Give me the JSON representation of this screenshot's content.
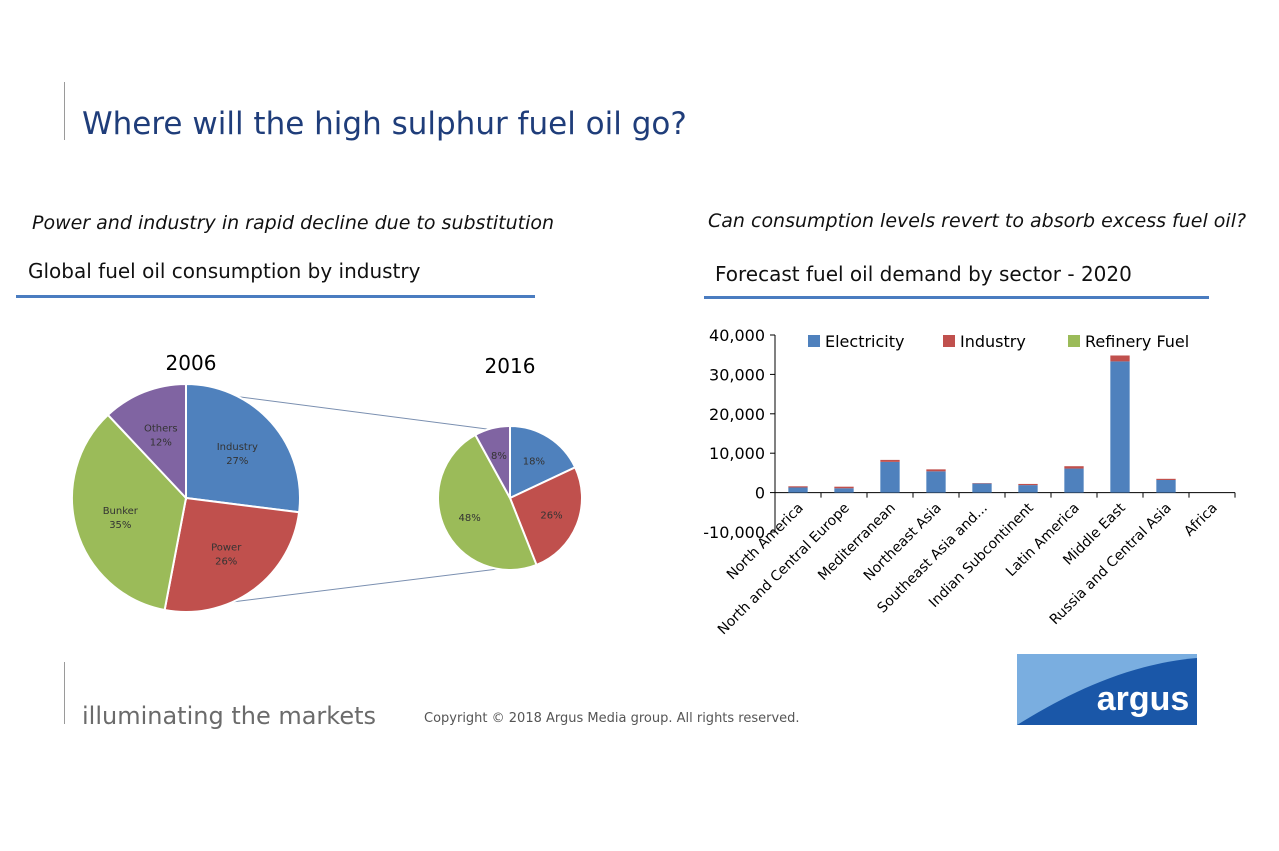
{
  "page": {
    "title": "Where will the high sulphur fuel oil go?",
    "left_subtitle": "Power and industry in rapid decline due to substitution",
    "right_subtitle": "Can consumption levels revert to absorb excess fuel oil?",
    "tagline": "illuminating the markets",
    "copyright": "Copyright © 2018 Argus Media group. All rights reserved.",
    "logo_text": "argus",
    "colors": {
      "title": "#1f3d7a",
      "rule": "#4a7cc0",
      "logo_dark": "#1a57a8",
      "logo_light": "#7aaee0"
    }
  },
  "chart_data": [
    {
      "type": "pie",
      "title": "Global fuel oil consumption by industry",
      "pie_title": "2006",
      "slices": [
        {
          "label": "Industry",
          "value": 27,
          "display": "27%",
          "color": "#4f81bd"
        },
        {
          "label": "Power",
          "value": 26,
          "display": "26%",
          "color": "#c0504d"
        },
        {
          "label": "Bunker",
          "value": 35,
          "display": "35%",
          "color": "#9bbb59"
        },
        {
          "label": "Others",
          "value": 12,
          "display": "12%",
          "color": "#8064a2"
        }
      ]
    },
    {
      "type": "pie",
      "pie_title": "2016",
      "slices": [
        {
          "label": "",
          "value": 18,
          "display": "18%",
          "color": "#4f81bd"
        },
        {
          "label": "",
          "value": 26,
          "display": "26%",
          "color": "#c0504d"
        },
        {
          "label": "",
          "value": 48,
          "display": "48%",
          "color": "#9bbb59"
        },
        {
          "label": "",
          "value": 8,
          "display": "8%",
          "color": "#8064a2"
        }
      ]
    },
    {
      "type": "bar",
      "stacked": true,
      "title": "Forecast fuel oil demand by sector - 2020",
      "categories": [
        "North America",
        "North and Central Europe",
        "Mediterranean",
        "Northeast Asia",
        "Southeast Asia and...",
        "Indian Subcontinent",
        "Latin America",
        "Middle East",
        "Russia and Central Asia",
        "Africa"
      ],
      "series": [
        {
          "name": "Electricity",
          "color": "#4f81bd",
          "values": [
            1300,
            1100,
            7800,
            5400,
            2300,
            1900,
            6100,
            33300,
            3200,
            0
          ]
        },
        {
          "name": "Industry",
          "color": "#c0504d",
          "values": [
            300,
            400,
            500,
            500,
            100,
            300,
            600,
            1500,
            300,
            0
          ]
        },
        {
          "name": "Refinery Fuel",
          "color": "#9bbb59",
          "values": [
            0,
            0,
            0,
            0,
            0,
            0,
            0,
            0,
            0,
            0
          ]
        }
      ],
      "ylim": [
        -10000,
        40000
      ],
      "yticks": [
        "40,000",
        "30,000",
        "20,000",
        "10,000",
        "0",
        "-10,000"
      ],
      "ytick_values": [
        40000,
        30000,
        20000,
        10000,
        0,
        -10000
      ],
      "legend_position": "top"
    }
  ]
}
